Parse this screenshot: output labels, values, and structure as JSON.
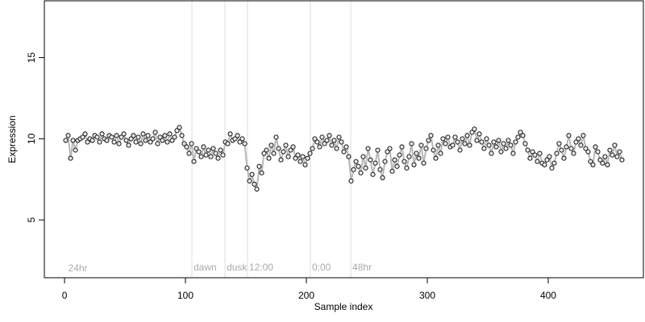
{
  "chart_data": {
    "type": "scatter-line",
    "xlabel": "Sample index",
    "ylabel": "Expression",
    "xlim": [
      -16.7,
      478.7
    ],
    "ylim": [
      1.44,
      18.5
    ],
    "xticks": [
      0,
      100,
      200,
      300,
      400
    ],
    "yticks": [
      5,
      10,
      15
    ],
    "point_color": "#e8e8e8",
    "line_color": "#b8b8b8",
    "marker_color": "#dddddd",
    "annotations": [
      {
        "x": 3,
        "y": 2,
        "text": "24hr"
      }
    ],
    "markers": [
      {
        "x": 105.3,
        "label": "dawn"
      },
      {
        "x": 132.7,
        "label": "dusk"
      },
      {
        "x": 151.3,
        "label": "12:00"
      },
      {
        "x": 203.3,
        "label": "0:00"
      },
      {
        "x": 236.7,
        "label": "48hr"
      }
    ],
    "x": [
      1,
      3,
      5,
      7,
      9,
      11,
      13,
      15,
      17,
      19,
      21,
      23,
      25,
      27,
      29,
      31,
      33,
      35,
      37,
      39,
      41,
      43,
      45,
      47,
      49,
      51,
      53,
      55,
      57,
      59,
      61,
      63,
      65,
      67,
      69,
      71,
      73,
      75,
      77,
      79,
      81,
      83,
      85,
      87,
      89,
      91,
      93,
      95,
      97,
      99,
      101,
      103,
      105,
      107,
      109,
      111,
      113,
      115,
      117,
      119,
      121,
      123,
      125,
      127,
      129,
      131,
      133,
      135,
      137,
      139,
      141,
      143,
      145,
      147,
      149,
      151,
      153,
      155,
      157,
      159,
      161,
      163,
      165,
      167,
      169,
      171,
      173,
      175,
      177,
      179,
      181,
      183,
      185,
      187,
      189,
      191,
      193,
      195,
      197,
      199,
      201,
      203,
      205,
      207,
      209,
      211,
      213,
      215,
      217,
      219,
      221,
      223,
      225,
      227,
      229,
      231,
      233,
      235,
      237,
      239,
      241,
      243,
      245,
      247,
      249,
      251,
      253,
      255,
      257,
      259,
      261,
      263,
      265,
      267,
      269,
      271,
      273,
      275,
      277,
      279,
      281,
      283,
      285,
      287,
      289,
      291,
      293,
      295,
      297,
      299,
      301,
      303,
      305,
      307,
      309,
      311,
      313,
      315,
      317,
      319,
      321,
      323,
      325,
      327,
      329,
      331,
      333,
      335,
      337,
      339,
      341,
      343,
      345,
      347,
      349,
      351,
      353,
      355,
      357,
      359,
      361,
      363,
      365,
      367,
      369,
      371,
      373,
      375,
      377,
      379,
      381,
      383,
      385,
      387,
      389,
      391,
      393,
      395,
      397,
      399,
      401,
      403,
      405,
      407,
      409,
      411,
      413,
      415,
      417,
      419,
      421,
      423,
      425,
      427,
      429,
      431,
      433,
      435,
      437,
      439,
      441,
      443,
      445,
      447,
      449,
      451,
      453,
      455,
      457,
      459,
      461
    ],
    "values": [
      9.9,
      10.2,
      8.8,
      9.9,
      9.3,
      9.9,
      10.0,
      10.1,
      10.3,
      9.8,
      10.0,
      9.9,
      10.2,
      10.1,
      9.8,
      10.3,
      10.0,
      9.9,
      10.2,
      10.1,
      9.8,
      10.2,
      9.7,
      10.1,
      10.3,
      9.9,
      9.6,
      10.0,
      10.2,
      9.8,
      10.1,
      9.7,
      10.3,
      9.9,
      10.2,
      9.8,
      10.0,
      10.4,
      9.7,
      10.1,
      9.9,
      10.2,
      9.8,
      10.3,
      9.9,
      10.1,
      10.5,
      10.7,
      10.2,
      9.7,
      9.5,
      9.1,
      9.7,
      8.6,
      9.4,
      9.2,
      8.9,
      9.5,
      9.0,
      9.3,
      8.9,
      9.4,
      9.1,
      8.8,
      9.3,
      9.0,
      9.8,
      9.7,
      10.3,
      9.9,
      10.0,
      10.2,
      9.8,
      10.0,
      9.7,
      8.2,
      7.4,
      7.8,
      7.2,
      6.9,
      8.3,
      7.9,
      9.1,
      9.3,
      8.8,
      9.6,
      9.1,
      10.1,
      9.4,
      8.7,
      9.2,
      9.6,
      8.9,
      9.3,
      9.5,
      8.8,
      9.0,
      8.6,
      8.9,
      8.4,
      8.8,
      9.1,
      9.4,
      10.0,
      9.8,
      9.5,
      10.1,
      9.7,
      9.9,
      10.2,
      9.6,
      9.9,
      9.4,
      10.1,
      9.8,
      9.2,
      9.5,
      8.9,
      7.4,
      8.1,
      8.6,
      8.3,
      7.9,
      8.9,
      8.2,
      9.4,
      8.7,
      7.8,
      8.5,
      9.3,
      8.1,
      7.6,
      8.6,
      9.2,
      9.4,
      8.0,
      8.7,
      8.3,
      9.0,
      9.5,
      8.6,
      8.2,
      8.9,
      9.7,
      8.4,
      9.1,
      8.8,
      9.6,
      8.5,
      9.4,
      9.9,
      10.2,
      9.3,
      8.8,
      9.6,
      9.1,
      10.0,
      9.7,
      10.1,
      9.5,
      9.6,
      10.1,
      9.8,
      9.3,
      10.0,
      9.7,
      10.2,
      9.6,
      10.4,
      10.6,
      9.9,
      10.3,
      9.8,
      9.4,
      10.0,
      9.6,
      9.1,
      9.8,
      9.5,
      9.9,
      9.2,
      9.7,
      9.4,
      9.9,
      9.6,
      9.1,
      9.8,
      10.1,
      10.4,
      10.2,
      9.7,
      9.3,
      8.8,
      9.2,
      9.0,
      8.6,
      9.1,
      8.5,
      8.4,
      8.7,
      8.9,
      8.2,
      8.5,
      9.1,
      9.7,
      9.3,
      8.8,
      9.5,
      10.2,
      9.4,
      9.1,
      9.8,
      10.0,
      9.6,
      10.2,
      9.4,
      9.2,
      8.6,
      8.4,
      9.5,
      9.2,
      8.7,
      8.5,
      8.9,
      8.4,
      9.3,
      9.0,
      9.6,
      8.9,
      9.2,
      8.7
    ]
  }
}
